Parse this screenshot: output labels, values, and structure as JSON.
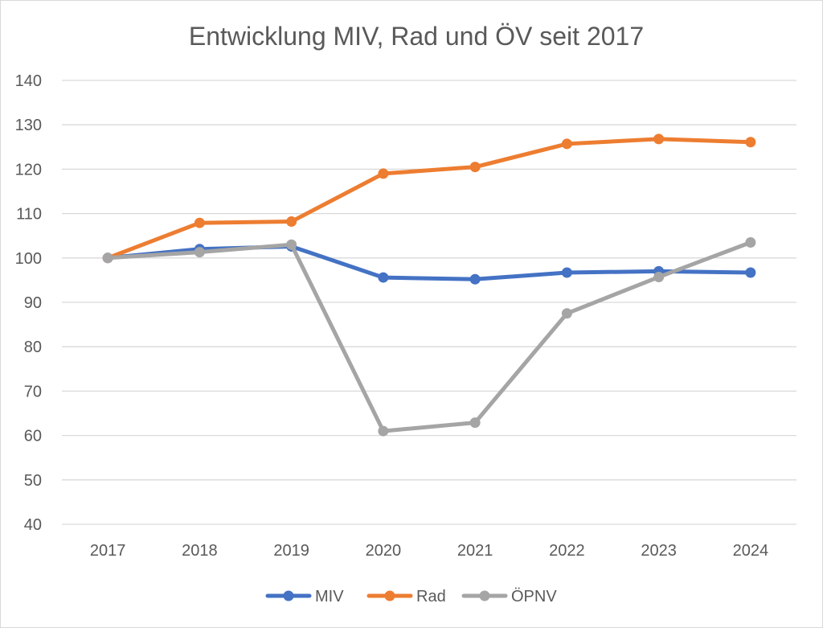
{
  "chart_data": {
    "type": "line",
    "title": "Entwicklung MIV, Rad und ÖV seit 2017",
    "xlabel": "",
    "ylabel": "",
    "categories": [
      "2017",
      "2018",
      "2019",
      "2020",
      "2021",
      "2022",
      "2023",
      "2024"
    ],
    "ylim": [
      40,
      140
    ],
    "yticks": [
      40,
      50,
      60,
      70,
      80,
      90,
      100,
      110,
      120,
      130,
      140
    ],
    "grid": true,
    "legend_position": "bottom",
    "series": [
      {
        "name": "MIV",
        "color": "#4472c4",
        "values": [
          100,
          102,
          102.6,
          95.6,
          95.2,
          96.7,
          97.0,
          96.7
        ]
      },
      {
        "name": "Rad",
        "color": "#ed7d31",
        "values": [
          100,
          107.9,
          108.2,
          119.0,
          120.5,
          125.7,
          126.8,
          126.1
        ]
      },
      {
        "name": "ÖPNV",
        "color": "#a5a5a5",
        "values": [
          100,
          101.3,
          103.0,
          61.0,
          62.9,
          87.5,
          95.7,
          103.5
        ]
      }
    ]
  }
}
